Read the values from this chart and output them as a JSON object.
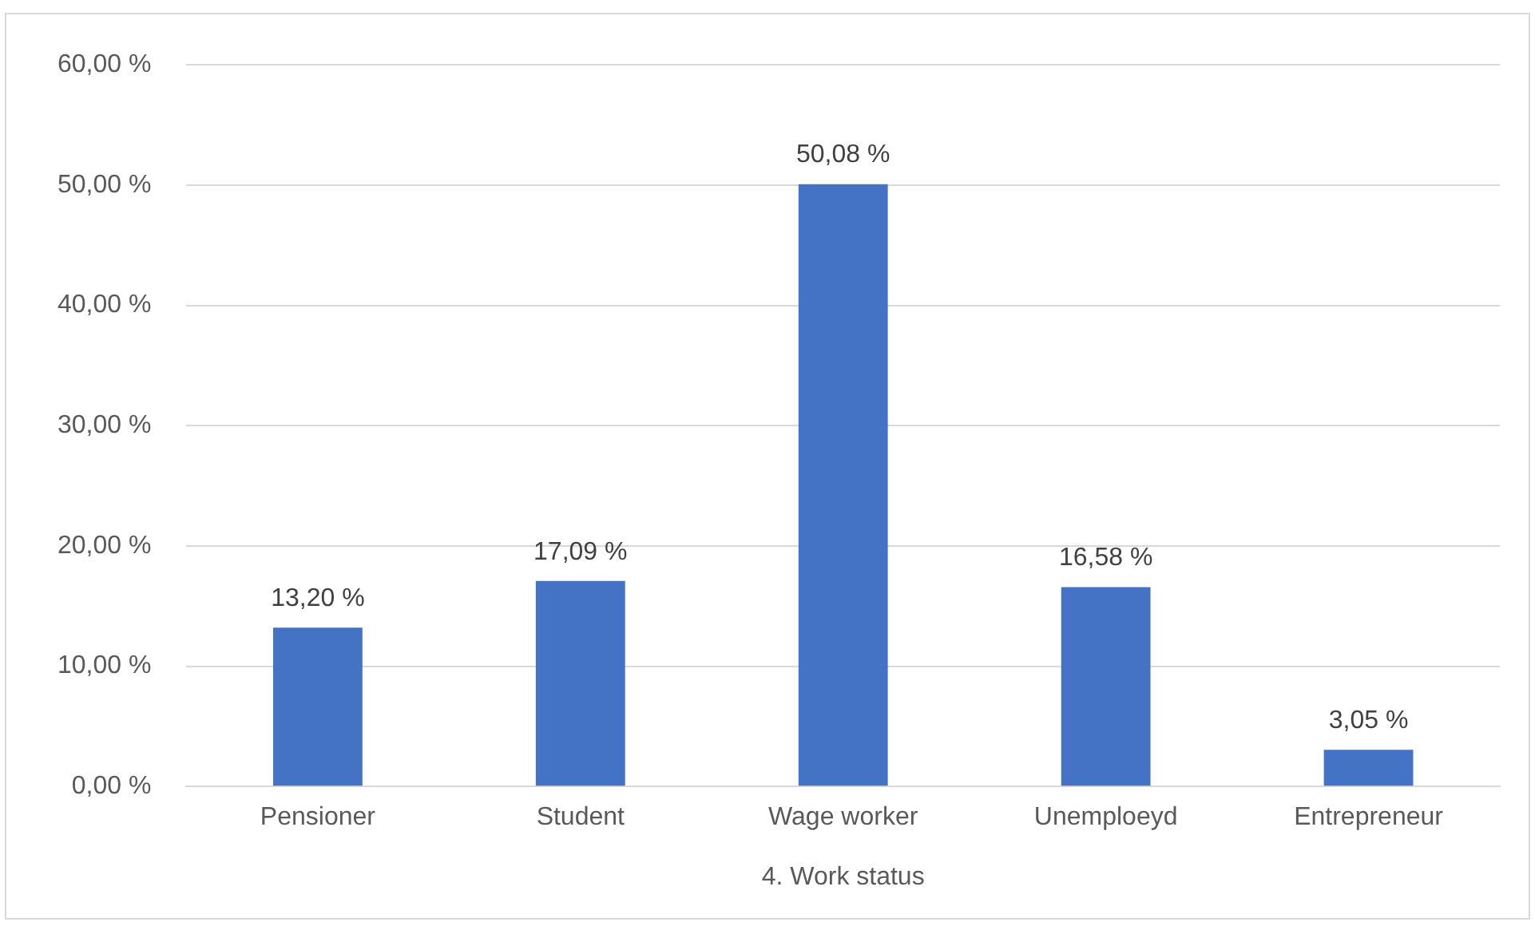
{
  "chart_data": {
    "type": "bar",
    "xlabel": "4. Work status",
    "categories": [
      "Pensioner",
      "Student",
      "Wage worker",
      "Unemploeyd",
      "Entrepreneur"
    ],
    "values": [
      13.2,
      17.09,
      50.08,
      16.58,
      3.05
    ],
    "value_labels": [
      "13,20 %",
      "17,09 %",
      "50,08 %",
      "16,58 %",
      "3,05 %"
    ],
    "color": "#4472c4",
    "ylim": [
      0,
      60
    ],
    "yticks": [
      {
        "value": 0,
        "label": "0,00 %"
      },
      {
        "value": 10,
        "label": "10,00 %"
      },
      {
        "value": 20,
        "label": "20,00 %"
      },
      {
        "value": 30,
        "label": "30,00 %"
      },
      {
        "value": 40,
        "label": "40,00 %"
      },
      {
        "value": 50,
        "label": "50,00 %"
      },
      {
        "value": 60,
        "label": "60,00 %"
      }
    ],
    "grid": "y",
    "legend": false
  }
}
